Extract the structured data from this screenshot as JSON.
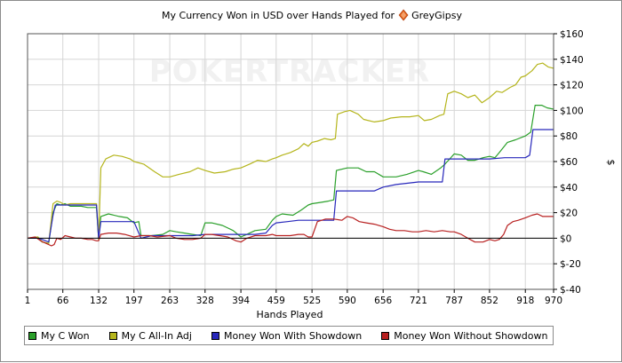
{
  "chart_data": {
    "type": "line",
    "title": "My Currency Won in USD over Hands Played for",
    "player_name": "GreyGipsy",
    "watermark": "POKERTRACKER",
    "xlabel": "Hands Played",
    "ylabel": "$",
    "xlim": [
      1,
      970
    ],
    "ylim": [
      -40,
      160
    ],
    "x_ticks": [
      1,
      66,
      132,
      197,
      263,
      328,
      394,
      459,
      525,
      590,
      656,
      721,
      787,
      852,
      918,
      970
    ],
    "y_ticks": [
      {
        "value": 160,
        "label": "$160"
      },
      {
        "value": 140,
        "label": "$140"
      },
      {
        "value": 120,
        "label": "$120"
      },
      {
        "value": 100,
        "label": "$100"
      },
      {
        "value": 80,
        "label": "$80"
      },
      {
        "value": 60,
        "label": "$60"
      },
      {
        "value": 40,
        "label": "$40"
      },
      {
        "value": 20,
        "label": "$20"
      },
      {
        "value": 0,
        "label": "$0"
      },
      {
        "value": -20,
        "label": "$-20"
      },
      {
        "value": -40,
        "label": "$-40"
      }
    ],
    "grid": true,
    "legend_position": "bottom",
    "series": [
      {
        "name": "My C Won",
        "color": "#2ba02b",
        "points": [
          [
            1,
            0
          ],
          [
            20,
            1
          ],
          [
            28,
            -3
          ],
          [
            40,
            -4
          ],
          [
            48,
            20
          ],
          [
            55,
            27
          ],
          [
            62,
            26
          ],
          [
            70,
            27
          ],
          [
            80,
            25
          ],
          [
            90,
            25
          ],
          [
            100,
            25
          ],
          [
            112,
            24
          ],
          [
            128,
            24
          ],
          [
            132,
            -1
          ],
          [
            136,
            17
          ],
          [
            150,
            19
          ],
          [
            170,
            17
          ],
          [
            185,
            16
          ],
          [
            197,
            12
          ],
          [
            206,
            13
          ],
          [
            210,
            2
          ],
          [
            230,
            2
          ],
          [
            250,
            3
          ],
          [
            263,
            6
          ],
          [
            275,
            5
          ],
          [
            290,
            4
          ],
          [
            305,
            3
          ],
          [
            320,
            2
          ],
          [
            328,
            12
          ],
          [
            340,
            12
          ],
          [
            360,
            10
          ],
          [
            380,
            6
          ],
          [
            394,
            1
          ],
          [
            405,
            3
          ],
          [
            420,
            6
          ],
          [
            440,
            7
          ],
          [
            452,
            14
          ],
          [
            459,
            17
          ],
          [
            470,
            19
          ],
          [
            490,
            18
          ],
          [
            505,
            22
          ],
          [
            518,
            26
          ],
          [
            525,
            27
          ],
          [
            540,
            28
          ],
          [
            555,
            29
          ],
          [
            565,
            30
          ],
          [
            570,
            53
          ],
          [
            590,
            55
          ],
          [
            610,
            55
          ],
          [
            625,
            52
          ],
          [
            640,
            52
          ],
          [
            656,
            48
          ],
          [
            680,
            48
          ],
          [
            700,
            50
          ],
          [
            721,
            53
          ],
          [
            730,
            52
          ],
          [
            745,
            50
          ],
          [
            762,
            55
          ],
          [
            770,
            58
          ],
          [
            787,
            66
          ],
          [
            800,
            65
          ],
          [
            812,
            61
          ],
          [
            825,
            61
          ],
          [
            840,
            63
          ],
          [
            852,
            64
          ],
          [
            862,
            63
          ],
          [
            870,
            67
          ],
          [
            885,
            75
          ],
          [
            900,
            77
          ],
          [
            912,
            79
          ],
          [
            918,
            80
          ],
          [
            928,
            83
          ],
          [
            936,
            104
          ],
          [
            948,
            104
          ],
          [
            958,
            102
          ],
          [
            970,
            101
          ]
        ]
      },
      {
        "name": "My C All-In Adj",
        "color": "#b5b51c",
        "points": [
          [
            1,
            0
          ],
          [
            20,
            1
          ],
          [
            28,
            -3
          ],
          [
            40,
            -4
          ],
          [
            48,
            27
          ],
          [
            55,
            29
          ],
          [
            62,
            28
          ],
          [
            70,
            26
          ],
          [
            80,
            27
          ],
          [
            90,
            27
          ],
          [
            100,
            27
          ],
          [
            112,
            27
          ],
          [
            128,
            27
          ],
          [
            132,
            -1
          ],
          [
            136,
            55
          ],
          [
            145,
            62
          ],
          [
            160,
            65
          ],
          [
            175,
            64
          ],
          [
            190,
            62
          ],
          [
            197,
            60
          ],
          [
            215,
            58
          ],
          [
            235,
            52
          ],
          [
            250,
            48
          ],
          [
            263,
            48
          ],
          [
            280,
            50
          ],
          [
            300,
            52
          ],
          [
            315,
            55
          ],
          [
            328,
            53
          ],
          [
            345,
            51
          ],
          [
            365,
            52
          ],
          [
            380,
            54
          ],
          [
            394,
            55
          ],
          [
            410,
            58
          ],
          [
            425,
            61
          ],
          [
            440,
            60
          ],
          [
            452,
            62
          ],
          [
            459,
            63
          ],
          [
            470,
            65
          ],
          [
            485,
            67
          ],
          [
            500,
            70
          ],
          [
            510,
            74
          ],
          [
            518,
            72
          ],
          [
            525,
            75
          ],
          [
            535,
            76
          ],
          [
            548,
            78
          ],
          [
            560,
            77
          ],
          [
            568,
            78
          ],
          [
            572,
            97
          ],
          [
            585,
            99
          ],
          [
            595,
            100
          ],
          [
            610,
            97
          ],
          [
            620,
            93
          ],
          [
            640,
            91
          ],
          [
            656,
            92
          ],
          [
            670,
            94
          ],
          [
            690,
            95
          ],
          [
            705,
            95
          ],
          [
            721,
            96
          ],
          [
            732,
            92
          ],
          [
            745,
            93
          ],
          [
            760,
            96
          ],
          [
            768,
            97
          ],
          [
            775,
            113
          ],
          [
            787,
            115
          ],
          [
            800,
            113
          ],
          [
            812,
            110
          ],
          [
            825,
            112
          ],
          [
            838,
            106
          ],
          [
            852,
            110
          ],
          [
            865,
            115
          ],
          [
            875,
            114
          ],
          [
            890,
            118
          ],
          [
            900,
            120
          ],
          [
            910,
            126
          ],
          [
            918,
            127
          ],
          [
            930,
            131
          ],
          [
            940,
            136
          ],
          [
            950,
            137
          ],
          [
            960,
            134
          ],
          [
            970,
            133
          ]
        ]
      },
      {
        "name": "Money Won With Showdown",
        "color": "#2727bb",
        "points": [
          [
            1,
            0
          ],
          [
            20,
            0
          ],
          [
            28,
            -1
          ],
          [
            40,
            -3
          ],
          [
            48,
            18
          ],
          [
            52,
            26
          ],
          [
            62,
            26
          ],
          [
            80,
            26
          ],
          [
            100,
            26
          ],
          [
            115,
            26
          ],
          [
            128,
            26
          ],
          [
            132,
            0
          ],
          [
            136,
            13
          ],
          [
            150,
            13
          ],
          [
            170,
            13
          ],
          [
            197,
            13
          ],
          [
            210,
            0
          ],
          [
            230,
            2
          ],
          [
            250,
            2
          ],
          [
            263,
            2
          ],
          [
            285,
            2
          ],
          [
            305,
            2
          ],
          [
            328,
            3
          ],
          [
            350,
            3
          ],
          [
            380,
            3
          ],
          [
            394,
            3
          ],
          [
            420,
            3
          ],
          [
            440,
            4
          ],
          [
            452,
            10
          ],
          [
            459,
            12
          ],
          [
            480,
            13
          ],
          [
            500,
            14
          ],
          [
            520,
            14
          ],
          [
            525,
            14
          ],
          [
            545,
            14
          ],
          [
            565,
            14
          ],
          [
            570,
            37
          ],
          [
            590,
            37
          ],
          [
            610,
            37
          ],
          [
            640,
            37
          ],
          [
            656,
            40
          ],
          [
            680,
            42
          ],
          [
            700,
            43
          ],
          [
            721,
            44
          ],
          [
            745,
            44
          ],
          [
            765,
            44
          ],
          [
            770,
            62
          ],
          [
            787,
            62
          ],
          [
            810,
            62
          ],
          [
            840,
            62
          ],
          [
            852,
            62
          ],
          [
            880,
            63
          ],
          [
            918,
            63
          ],
          [
            926,
            65
          ],
          [
            932,
            85
          ],
          [
            950,
            85
          ],
          [
            970,
            85
          ]
        ]
      },
      {
        "name": "Money Won Without Showdown",
        "color": "#b82020",
        "points": [
          [
            1,
            0
          ],
          [
            15,
            1
          ],
          [
            25,
            -2
          ],
          [
            35,
            -4
          ],
          [
            45,
            -6
          ],
          [
            50,
            -5
          ],
          [
            55,
            0
          ],
          [
            62,
            -1
          ],
          [
            70,
            2
          ],
          [
            80,
            1
          ],
          [
            90,
            0
          ],
          [
            100,
            0
          ],
          [
            112,
            -1
          ],
          [
            120,
            -1
          ],
          [
            128,
            -2
          ],
          [
            132,
            -2
          ],
          [
            136,
            3
          ],
          [
            150,
            4
          ],
          [
            165,
            4
          ],
          [
            180,
            3
          ],
          [
            197,
            1
          ],
          [
            210,
            2
          ],
          [
            225,
            2
          ],
          [
            240,
            1
          ],
          [
            263,
            2
          ],
          [
            275,
            0
          ],
          [
            290,
            -1
          ],
          [
            305,
            -1
          ],
          [
            320,
            0
          ],
          [
            328,
            3
          ],
          [
            340,
            3
          ],
          [
            355,
            2
          ],
          [
            370,
            1
          ],
          [
            385,
            -2
          ],
          [
            394,
            -3
          ],
          [
            405,
            0
          ],
          [
            420,
            2
          ],
          [
            440,
            2
          ],
          [
            452,
            3
          ],
          [
            459,
            2
          ],
          [
            470,
            2
          ],
          [
            485,
            2
          ],
          [
            500,
            3
          ],
          [
            510,
            3
          ],
          [
            518,
            1
          ],
          [
            525,
            1
          ],
          [
            535,
            13
          ],
          [
            550,
            15
          ],
          [
            565,
            15
          ],
          [
            580,
            14
          ],
          [
            590,
            17
          ],
          [
            600,
            16
          ],
          [
            612,
            13
          ],
          [
            625,
            12
          ],
          [
            640,
            11
          ],
          [
            656,
            9
          ],
          [
            668,
            7
          ],
          [
            680,
            6
          ],
          [
            695,
            6
          ],
          [
            710,
            5
          ],
          [
            721,
            5
          ],
          [
            735,
            6
          ],
          [
            750,
            5
          ],
          [
            765,
            6
          ],
          [
            780,
            5
          ],
          [
            787,
            5
          ],
          [
            800,
            3
          ],
          [
            812,
            0
          ],
          [
            825,
            -3
          ],
          [
            840,
            -3
          ],
          [
            852,
            -1
          ],
          [
            862,
            -2
          ],
          [
            870,
            -1
          ],
          [
            878,
            3
          ],
          [
            885,
            10
          ],
          [
            895,
            13
          ],
          [
            905,
            14
          ],
          [
            918,
            16
          ],
          [
            930,
            18
          ],
          [
            940,
            19
          ],
          [
            950,
            17
          ],
          [
            960,
            17
          ],
          [
            970,
            17
          ]
        ]
      }
    ]
  }
}
